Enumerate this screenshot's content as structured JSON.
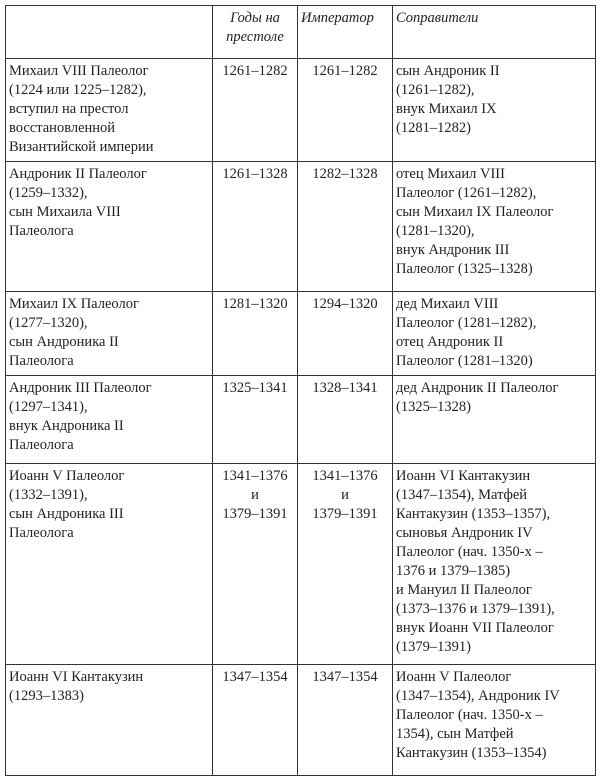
{
  "header": [
    "",
    "Годы на\nпрестоле",
    "Император",
    "Соправители"
  ],
  "rows": [
    [
      "Михаил VIII Палеолог\n(1224 или 1225–1282),\nвступил на престол\nвосстановленной\nВизантийской империи",
      "1261–1282",
      "1261–1282",
      "сын Андроник II\n(1261–1282),\nвнук Михаил IX\n(1281–1282)"
    ],
    [
      "Андроник II Палеолог\n(1259–1332),\nсын Михаила VIII\nПалеолога",
      "1261–1328",
      "1282–1328",
      "отец Михаил VIII\nПалеолог (1261–1282),\nсын Михаил IX Палеолог\n(1281–1320),\nвнук Андроник III\nПалеолог (1325–1328)"
    ],
    [
      "Михаил IX Палеолог\n(1277–1320),\nсын Андроника II\nПалеолога",
      "1281–1320",
      "1294–1320",
      "дед Михаил VIII\nПалеолог (1281–1282),\nотец Андроник II\nПалеолог (1281–1320)"
    ],
    [
      "Андроник III Палеолог\n(1297–1341),\nвнук Андроника II\nПалеолога",
      "1325–1341",
      "1328–1341",
      "дед Андроник II Палеолог\n(1325–1328)"
    ],
    [
      "Иоанн V Палеолог\n(1332–1391),\nсын Андроника III\nПалеолога",
      "1341–1376\nи\n1379–1391",
      "1341–1376\nи\n1379–1391",
      "Иоанн VI Кантакузин\n(1347–1354), Матфей\nКантакузин (1353–1357),\nсыновья Андроник IV\nПалеолог (нач. 1350-х –\n1376 и 1379–1385)\nи Мануил II Палеолог\n(1373–1376 и 1379–1391),\nвнук Иоанн VII Палеолог\n(1379–1391)"
    ],
    [
      "Иоанн VI Кантакузин\n(1293–1383)",
      "1347–1354",
      "1347–1354",
      "Иоанн V Палеолог\n(1347–1354), Андроник IV\nПалеолог (нач. 1350-х –\n1354), сын Матфей\nКантакузин (1353–1354)"
    ]
  ]
}
